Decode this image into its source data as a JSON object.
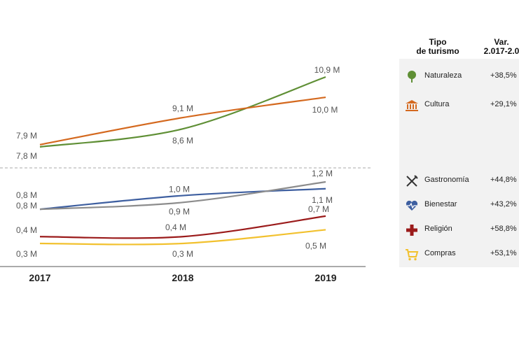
{
  "chart_data": {
    "type": "line",
    "x": [
      "2017",
      "2018",
      "2019"
    ],
    "series": [
      {
        "key": "naturaleza",
        "values": [
          7.8,
          8.6,
          10.9
        ],
        "labels": [
          "7,8 M",
          "8,6 M",
          "10,9 M"
        ],
        "color": "#5f8f35"
      },
      {
        "key": "cultura",
        "values": [
          7.9,
          9.1,
          10.0
        ],
        "labels": [
          "7,9 M",
          "9,1 M",
          "10,0 M"
        ],
        "color": "#d4691f"
      },
      {
        "key": "gastronomia",
        "values": [
          0.8,
          1.0,
          1.1
        ],
        "labels": [
          "0,8 M",
          "1,0 M",
          "1,1 M"
        ],
        "color": "#3e5fa0"
      },
      {
        "key": "bienestar",
        "values": [
          0.8,
          0.9,
          1.2
        ],
        "labels": [
          "0,8 M",
          "0,9 M",
          "1,2 M"
        ],
        "color": "#8c8c8c"
      },
      {
        "key": "religion",
        "values": [
          0.4,
          0.4,
          0.7
        ],
        "labels": [
          "0,4 M",
          "0,4 M",
          "0,7 M"
        ],
        "color": "#9b1b1b"
      },
      {
        "key": "compras",
        "values": [
          0.3,
          0.3,
          0.5
        ],
        "labels": [
          "0,3 M",
          "0,3 M",
          "0,5 M"
        ],
        "color": "#f2c12e"
      }
    ],
    "axis_break": true,
    "grid": false,
    "legend": "right-table"
  },
  "legend_table": {
    "header_tipo": "Tipo\nde turismo",
    "header_var": "Var.\n2.017-2.0",
    "rows": [
      {
        "key": "naturaleza",
        "name": "Naturaleza",
        "var": "+38,5%",
        "icon": "tree-icon",
        "color": "#5f8f35"
      },
      {
        "key": "cultura",
        "name": "Cultura",
        "var": "+29,1%",
        "icon": "museum-icon",
        "color": "#d4691f"
      },
      {
        "key": "gastronomia",
        "name": "Gastronomía",
        "var": "+44,8%",
        "icon": "fork-knife-icon",
        "color": "#333333"
      },
      {
        "key": "bienestar",
        "name": "Bienestar",
        "var": "+43,2%",
        "icon": "heart-pulse-icon",
        "color": "#3e5fa0"
      },
      {
        "key": "religion",
        "name": "Religión",
        "var": "+58,8%",
        "icon": "cross-icon",
        "color": "#9b1b1b"
      },
      {
        "key": "compras",
        "name": "Compras",
        "var": "+53,1%",
        "icon": "shopping-cart-icon",
        "color": "#f2c12e"
      }
    ]
  }
}
